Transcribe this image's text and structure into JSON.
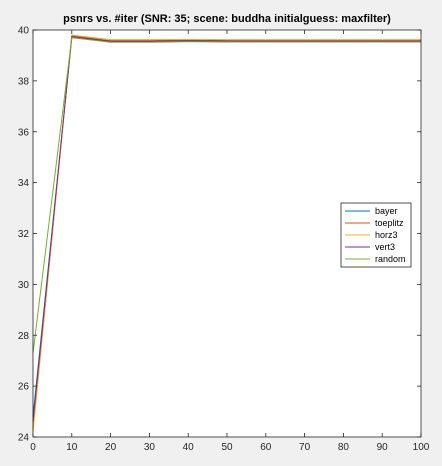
{
  "chart_data": {
    "type": "line",
    "title": "psnrs vs. #iter (SNR: 35; scene: buddha initialguess: maxfilter)",
    "xlabel": "",
    "ylabel": "",
    "xlim": [
      0,
      100
    ],
    "ylim": [
      24,
      40
    ],
    "xticks": [
      0,
      10,
      20,
      30,
      40,
      50,
      60,
      70,
      80,
      90,
      100
    ],
    "yticks": [
      24,
      26,
      28,
      30,
      32,
      34,
      36,
      38,
      40
    ],
    "grid": false,
    "legend_position": "right",
    "x": [
      0,
      10,
      20,
      30,
      40,
      50,
      60,
      70,
      80,
      90,
      100
    ],
    "series": [
      {
        "name": "bayer",
        "color": "#0072bd",
        "values": [
          24.8,
          39.7,
          39.55,
          39.55,
          39.57,
          39.56,
          39.56,
          39.56,
          39.56,
          39.56,
          39.56
        ]
      },
      {
        "name": "toeplitz",
        "color": "#d95319",
        "values": [
          24.3,
          39.78,
          39.58,
          39.58,
          39.6,
          39.58,
          39.58,
          39.58,
          39.58,
          39.58,
          39.58
        ]
      },
      {
        "name": "horz3",
        "color": "#edb120",
        "values": [
          24.2,
          39.8,
          39.62,
          39.62,
          39.63,
          39.62,
          39.62,
          39.62,
          39.62,
          39.62,
          39.62
        ]
      },
      {
        "name": "vert3",
        "color": "#7e2f8e",
        "values": [
          24.6,
          39.74,
          39.56,
          39.56,
          39.58,
          39.57,
          39.57,
          39.57,
          39.57,
          39.57,
          39.57
        ]
      },
      {
        "name": "random",
        "color": "#77ac30",
        "values": [
          27.3,
          39.7,
          39.52,
          39.52,
          39.54,
          39.53,
          39.53,
          39.53,
          39.53,
          39.53,
          39.53
        ]
      }
    ]
  }
}
